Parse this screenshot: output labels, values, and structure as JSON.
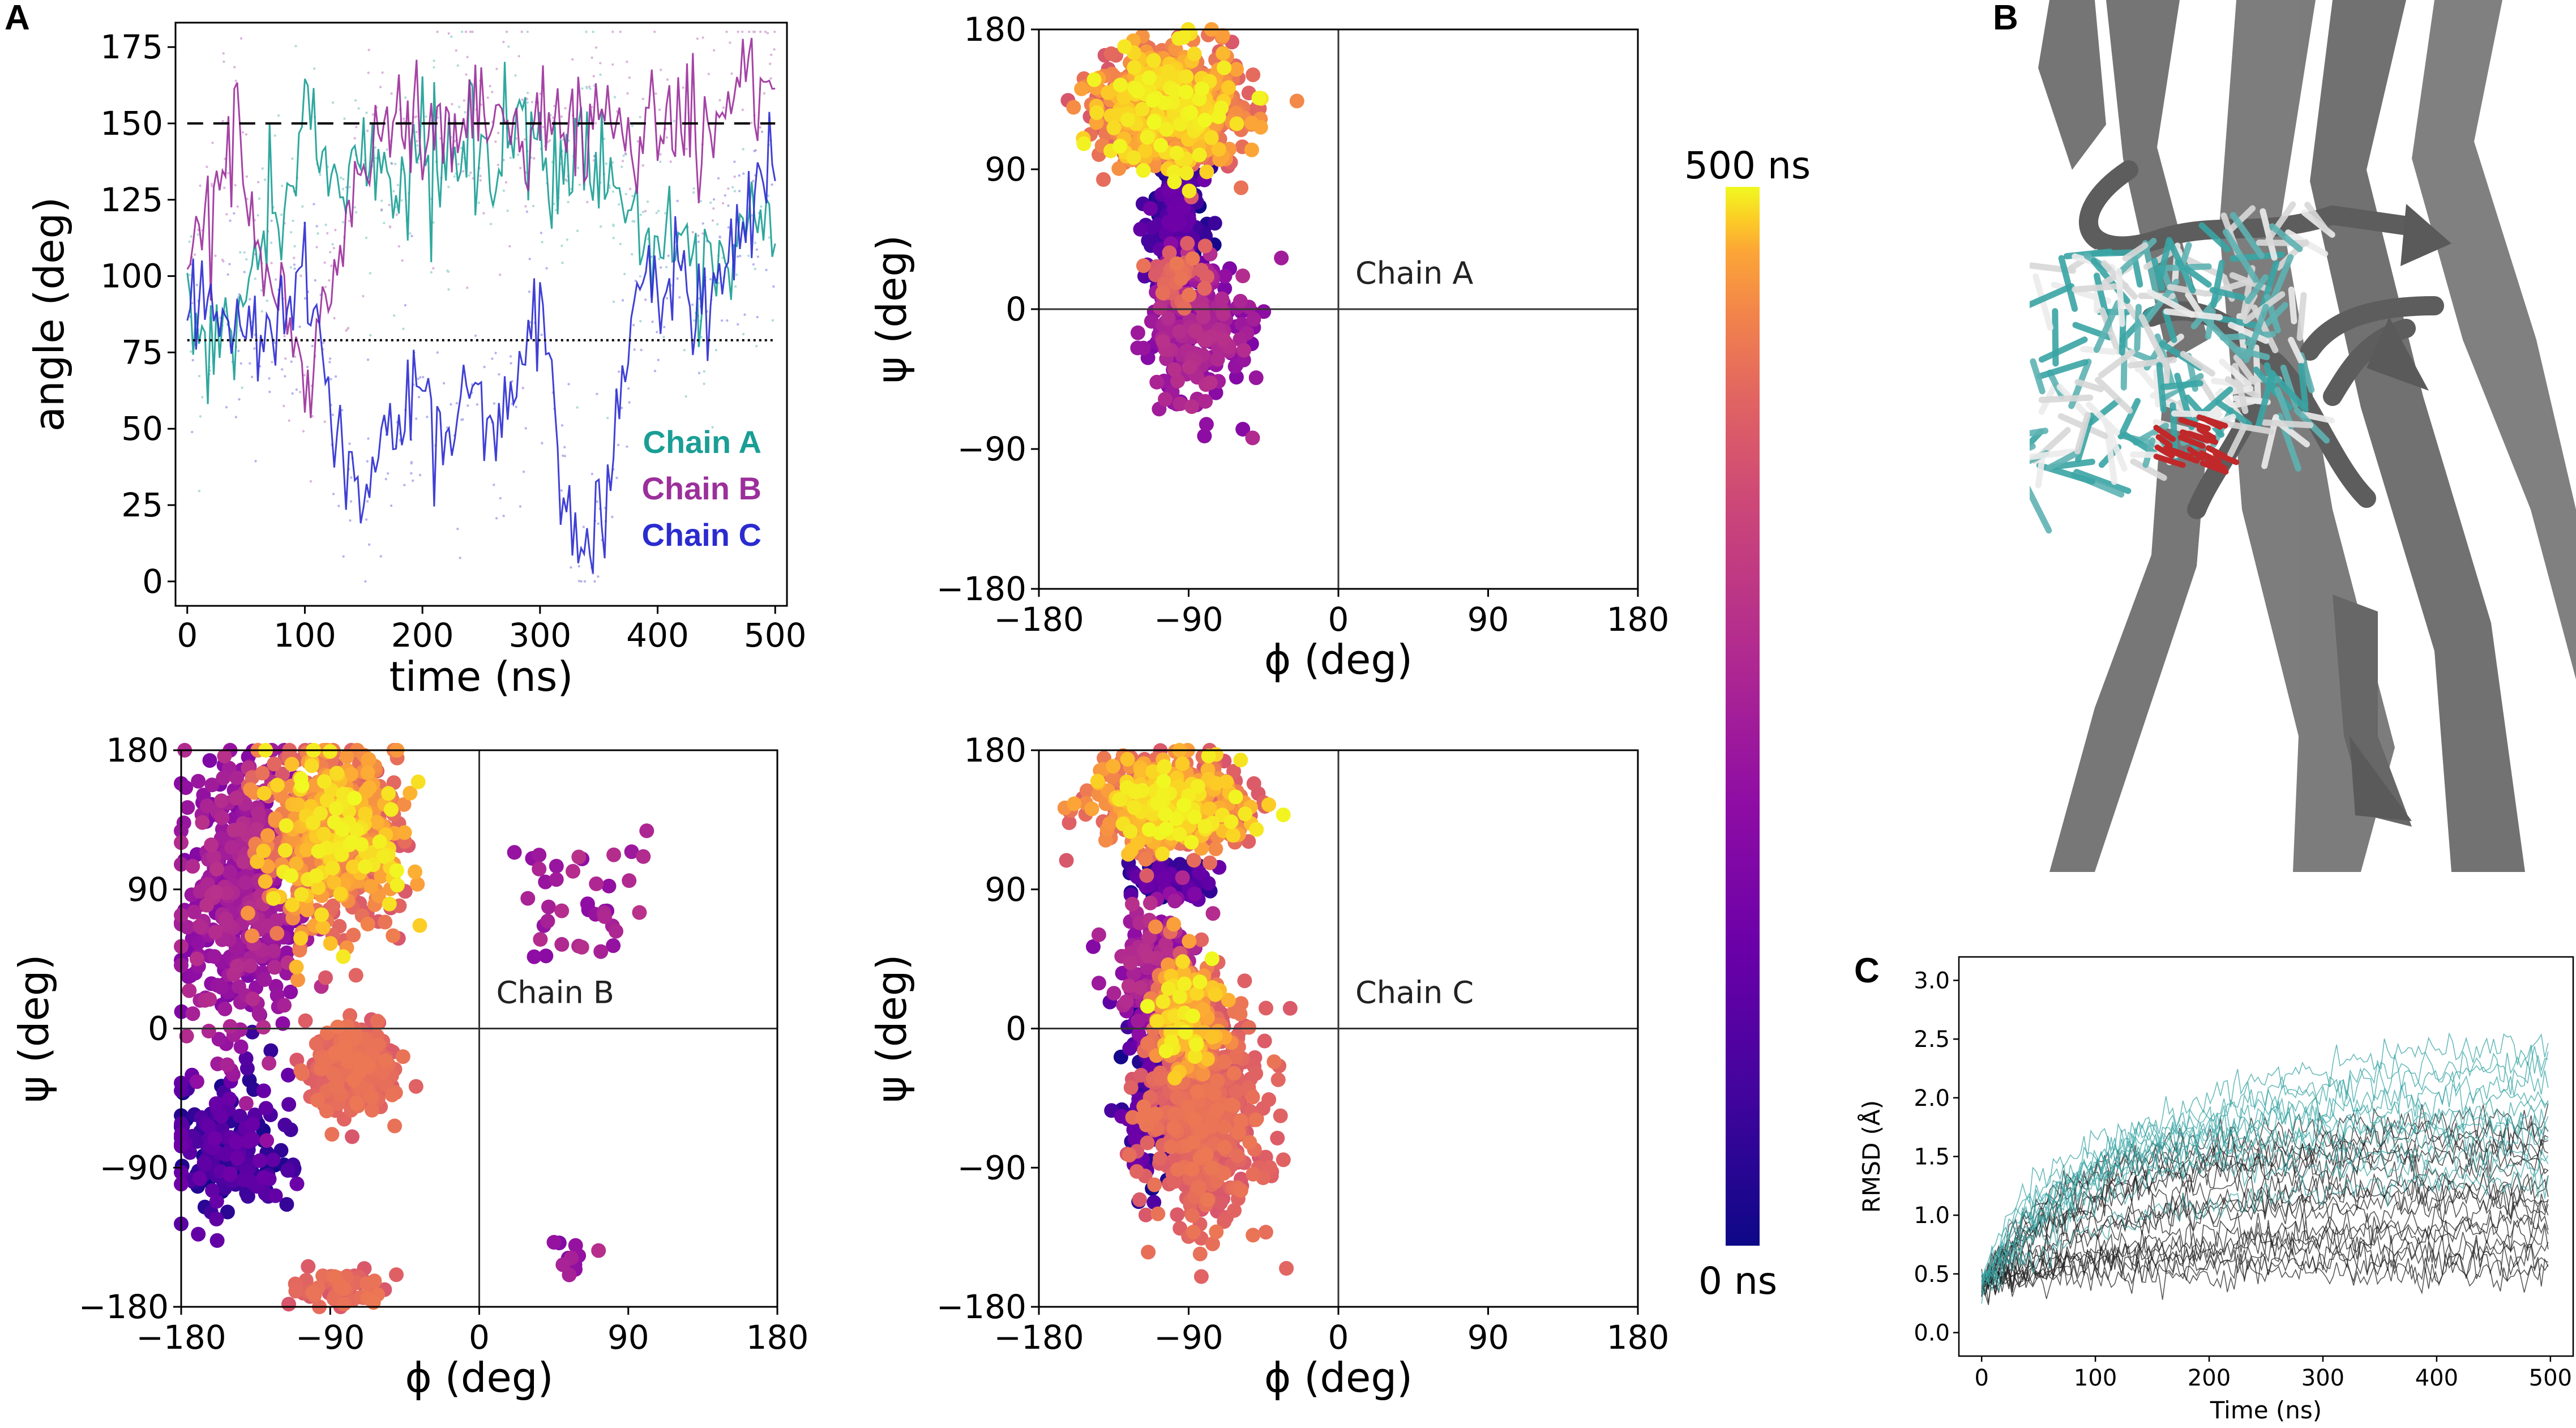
{
  "panel_labels": {
    "a": "A",
    "b": "B",
    "c": "C"
  },
  "colors": {
    "chain_a": "#1a9e95",
    "chain_b": "#9b2f9b",
    "chain_c": "#2b2bd0",
    "rmsd_teal": "#3aa5a5",
    "rmsd_black": "#222222",
    "protein_grey": "#6a6a6a",
    "ligand_red": "#c0282a"
  },
  "chart_data": [
    {
      "id": "angle_timeseries",
      "type": "line",
      "title": "",
      "xlabel": "time (ns)",
      "ylabel": "angle (deg)",
      "xlim": [
        -10,
        510
      ],
      "ylim": [
        -8,
        183
      ],
      "xticks": [
        0,
        100,
        200,
        300,
        400,
        500
      ],
      "yticks": [
        0,
        25,
        50,
        75,
        100,
        125,
        150,
        175
      ],
      "reference_lines": [
        {
          "y": 150,
          "style": "dashed"
        },
        {
          "y": 79,
          "style": "dotted"
        }
      ],
      "x": [
        0,
        20,
        40,
        60,
        80,
        100,
        120,
        140,
        160,
        180,
        200,
        220,
        240,
        260,
        280,
        300,
        320,
        340,
        360,
        380,
        400,
        420,
        440,
        460,
        480,
        500
      ],
      "series": [
        {
          "name": "Chain A",
          "values": [
            95,
            75,
            80,
            112,
            128,
            150,
            140,
            130,
            145,
            125,
            148,
            135,
            150,
            130,
            152,
            145,
            128,
            150,
            132,
            120,
            110,
            100,
            95,
            102,
            118,
            108
          ]
        },
        {
          "name": "Chain B",
          "values": [
            100,
            122,
            150,
            112,
            90,
            60,
            95,
            125,
            140,
            152,
            148,
            150,
            150,
            152,
            148,
            150,
            150,
            152,
            150,
            150,
            152,
            150,
            148,
            155,
            165,
            170
          ]
        },
        {
          "name": "Chain C",
          "values": [
            85,
            78,
            80,
            80,
            78,
            105,
            70,
            25,
            35,
            55,
            60,
            40,
            70,
            50,
            60,
            100,
            25,
            15,
            30,
            95,
            90,
            100,
            90,
            110,
            125,
            140
          ]
        }
      ]
    },
    {
      "id": "ramachandran_chain_a",
      "type": "scatter",
      "label": "Chain A",
      "xlabel": "ϕ (deg)",
      "ylabel": "ψ (deg)",
      "xlim": [
        -180,
        180
      ],
      "ylim": [
        -180,
        180
      ],
      "xticks": [
        -180,
        -90,
        0,
        90,
        180
      ],
      "yticks": [
        -180,
        -90,
        0,
        90,
        180
      ],
      "time_range_ns": [
        0,
        500
      ],
      "clusters": [
        {
          "phi": -100,
          "psi": 130,
          "sphi": 20,
          "spsi": 18,
          "n": 950,
          "t": [
            0.75,
            1.0
          ]
        },
        {
          "phi": -98,
          "psi": 60,
          "sphi": 9,
          "spsi": 22,
          "n": 170,
          "t": [
            0.0,
            0.3
          ]
        },
        {
          "phi": -85,
          "psi": -15,
          "sphi": 14,
          "spsi": 22,
          "n": 260,
          "t": [
            0.35,
            0.6
          ]
        },
        {
          "phi": -95,
          "psi": 20,
          "sphi": 8,
          "spsi": 10,
          "n": 40,
          "t": [
            0.75,
            0.85
          ]
        }
      ]
    },
    {
      "id": "ramachandran_chain_b",
      "type": "scatter",
      "label": "Chain B",
      "xlabel": "ϕ (deg)",
      "ylabel": "ψ (deg)",
      "xlim": [
        -180,
        180
      ],
      "ylim": [
        -180,
        180
      ],
      "xticks": [
        -180,
        -90,
        0,
        90,
        180
      ],
      "yticks": [
        -180,
        -90,
        0,
        90,
        180
      ],
      "time_range_ns": [
        0,
        500
      ],
      "clusters": [
        {
          "phi": -88,
          "psi": 125,
          "sphi": 20,
          "spsi": 28,
          "n": 700,
          "t": [
            0.75,
            1.0
          ]
        },
        {
          "phi": -145,
          "psi": 90,
          "sphi": 18,
          "spsi": 45,
          "n": 450,
          "t": [
            0.35,
            0.6
          ]
        },
        {
          "phi": -75,
          "psi": -25,
          "sphi": 12,
          "spsi": 14,
          "n": 320,
          "t": [
            0.75,
            0.85
          ]
        },
        {
          "phi": -150,
          "psi": -75,
          "sphi": 18,
          "spsi": 22,
          "n": 200,
          "t": [
            0.0,
            0.3
          ]
        },
        {
          "phi": -85,
          "psi": -168,
          "sphi": 15,
          "spsi": 7,
          "n": 60,
          "t": [
            0.75,
            0.85
          ]
        },
        {
          "phi": 65,
          "psi": 80,
          "sphi": 18,
          "spsi": 22,
          "n": 40,
          "t": [
            0.35,
            0.6
          ]
        },
        {
          "phi": 58,
          "psi": -150,
          "sphi": 5,
          "spsi": 6,
          "n": 12,
          "t": [
            0.35,
            0.6
          ]
        }
      ]
    },
    {
      "id": "ramachandran_chain_c",
      "type": "scatter",
      "label": "Chain C",
      "xlabel": "ϕ (deg)",
      "ylabel": "ψ (deg)",
      "xlim": [
        -180,
        180
      ],
      "ylim": [
        -180,
        180
      ],
      "xticks": [
        -180,
        -90,
        0,
        90,
        180
      ],
      "yticks": [
        -180,
        -90,
        0,
        90,
        180
      ],
      "time_range_ns": [
        0,
        500
      ],
      "clusters": [
        {
          "phi": -100,
          "psi": 145,
          "sphi": 22,
          "spsi": 13,
          "n": 700,
          "t": [
            0.75,
            1.0
          ]
        },
        {
          "phi": -100,
          "psi": 95,
          "sphi": 12,
          "spsi": 6,
          "n": 90,
          "t": [
            0.0,
            0.3
          ]
        },
        {
          "phi": -90,
          "psi": 10,
          "sphi": 12,
          "spsi": 18,
          "n": 280,
          "t": [
            0.75,
            1.0
          ]
        },
        {
          "phi": -80,
          "psi": -55,
          "sphi": 18,
          "spsi": 35,
          "n": 500,
          "t": [
            0.75,
            0.85
          ]
        },
        {
          "phi": -110,
          "psi": -40,
          "sphi": 10,
          "spsi": 30,
          "n": 120,
          "t": [
            0.0,
            0.3
          ]
        },
        {
          "phi": -110,
          "psi": 40,
          "sphi": 12,
          "spsi": 22,
          "n": 150,
          "t": [
            0.35,
            0.6
          ]
        }
      ]
    },
    {
      "id": "colorbar",
      "type": "heatmap",
      "colormap": "plasma",
      "min_label": "0 ns",
      "max_label": "500 ns",
      "range": [
        0,
        500
      ]
    },
    {
      "id": "rmsd_timeseries",
      "type": "line",
      "xlabel": "Time (ns)",
      "ylabel": "RMSD (Å)",
      "xlim": [
        -20,
        520
      ],
      "ylim": [
        -0.2,
        3.2
      ],
      "xticks": [
        0,
        100,
        200,
        300,
        400,
        500
      ],
      "yticks": [
        0.0,
        0.5,
        1.0,
        1.5,
        2.0,
        2.5,
        3.0
      ],
      "series": [
        {
          "name": "teal group",
          "color": "#3aa5a5",
          "n_traces": 12,
          "plateau_range": [
            1.3,
            2.5
          ],
          "initial": 0.4
        },
        {
          "name": "black group",
          "color": "#222222",
          "n_traces": 20,
          "plateau_range": [
            0.5,
            1.8
          ],
          "initial": 0.4
        }
      ]
    }
  ]
}
